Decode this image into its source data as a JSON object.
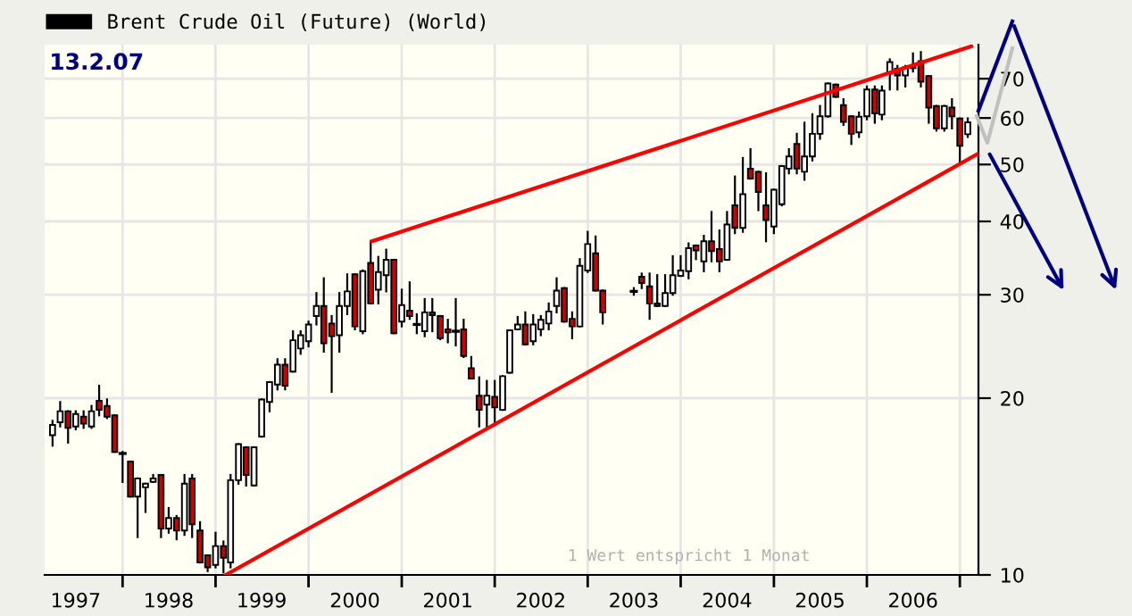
{
  "chart_data": {
    "type": "candlestick",
    "xlim": [
      "1997-03-01",
      "2007-03-15"
    ],
    "xticks": [
      {
        "value": "1997-07-01",
        "label": "1997"
      },
      {
        "value": "1998-01-01",
        "label": null
      },
      {
        "value": "1998-07-01",
        "label": "1998"
      },
      {
        "value": "1999-01-01",
        "label": null
      },
      {
        "value": "1999-07-01",
        "label": "1999"
      },
      {
        "value": "2000-01-01",
        "label": null
      },
      {
        "value": "2000-07-01",
        "label": "2000"
      },
      {
        "value": "2001-01-01",
        "label": null
      },
      {
        "value": "2001-07-01",
        "label": "2001"
      },
      {
        "value": "2002-01-01",
        "label": null
      },
      {
        "value": "2002-07-01",
        "label": "2002"
      },
      {
        "value": "2003-01-01",
        "label": null
      },
      {
        "value": "2003-07-01",
        "label": "2003"
      },
      {
        "value": "2004-01-01",
        "label": null
      },
      {
        "value": "2004-07-01",
        "label": "2004"
      },
      {
        "value": "2005-01-01",
        "label": null
      },
      {
        "value": "2005-07-01",
        "label": "2005"
      },
      {
        "value": "2006-01-01",
        "label": null
      },
      {
        "value": "2006-07-01",
        "label": "2006"
      },
      {
        "value": "2007-01-01",
        "label": null
      }
    ],
    "ylim": [
      10,
      80
    ],
    "yticks": [
      10,
      20,
      30,
      40,
      50,
      60,
      70
    ],
    "log": true,
    "grid": true,
    "legend": "top left",
    "annotations": [
      "13.2.07",
      "1 Wert entspricht 1 Monat"
    ],
    "series": [
      {
        "name": "Brent Crude Oil (Future) (World)",
        "color": "#000000",
        "x": [
          "1997-04",
          "1997-05",
          "1997-06",
          "1997-07",
          "1997-08",
          "1997-09",
          "1997-10",
          "1997-11",
          "1997-12",
          "1998-01",
          "1998-02",
          "1998-03",
          "1998-04",
          "1998-05",
          "1998-06",
          "1998-07",
          "1998-08",
          "1998-09",
          "1998-10",
          "1998-11",
          "1998-12",
          "1999-01",
          "1999-02",
          "1999-03",
          "1999-04",
          "1999-05",
          "1999-06",
          "1999-07",
          "1999-08",
          "1999-09",
          "1999-10",
          "1999-11",
          "1999-12",
          "2000-01",
          "2000-02",
          "2000-03",
          "2000-04",
          "2000-05",
          "2000-06",
          "2000-07",
          "2000-08",
          "2000-09",
          "2000-10",
          "2000-11",
          "2000-12",
          "2001-01",
          "2001-02",
          "2001-03",
          "2001-04",
          "2001-05",
          "2001-06",
          "2001-07",
          "2001-08",
          "2001-09",
          "2001-10",
          "2001-11",
          "2001-12",
          "2002-01",
          "2002-02",
          "2002-03",
          "2002-04",
          "2002-05",
          "2002-06",
          "2002-07",
          "2002-08",
          "2002-09",
          "2002-10",
          "2002-11",
          "2002-12",
          "2003-01",
          "2003-02",
          "2003-03",
          "2003-07",
          "2003-08",
          "2003-09",
          "2003-10",
          "2003-11",
          "2003-12",
          "2004-01",
          "2004-02",
          "2004-03",
          "2004-04",
          "2004-05",
          "2004-06",
          "2004-07",
          "2004-08",
          "2004-09",
          "2004-10",
          "2004-11",
          "2004-12",
          "2005-01",
          "2005-02",
          "2005-03",
          "2005-04",
          "2005-05",
          "2005-06",
          "2005-07",
          "2005-08",
          "2005-09",
          "2005-10",
          "2005-11",
          "2005-12",
          "2006-01",
          "2006-02",
          "2006-03",
          "2006-04",
          "2006-05",
          "2006-06",
          "2006-07",
          "2006-08",
          "2006-09",
          "2006-10",
          "2006-11",
          "2006-12",
          "2007-01",
          "2007-02"
        ],
        "ohlc": [
          [
            17.3,
            18.3,
            16.6,
            18.0
          ],
          [
            18.2,
            19.7,
            17.9,
            19.0
          ],
          [
            19.0,
            19.0,
            16.8,
            17.8
          ],
          [
            17.9,
            19.0,
            17.7,
            18.8
          ],
          [
            18.6,
            19.0,
            17.8,
            18.1
          ],
          [
            17.9,
            19.4,
            17.8,
            19.0
          ],
          [
            19.8,
            21.0,
            18.7,
            19.1
          ],
          [
            19.4,
            19.9,
            18.5,
            18.6
          ],
          [
            18.7,
            18.7,
            16.2,
            16.2
          ],
          [
            16.1,
            16.2,
            14.4,
            16.1
          ],
          [
            15.6,
            15.6,
            13.6,
            13.6
          ],
          [
            13.6,
            14.6,
            11.6,
            14.6
          ],
          [
            14.1,
            14.3,
            12.8,
            14.3
          ],
          [
            14.4,
            14.8,
            14.4,
            14.6
          ],
          [
            14.8,
            14.8,
            11.6,
            12.0
          ],
          [
            12.0,
            13.0,
            11.8,
            12.5
          ],
          [
            12.5,
            12.6,
            11.5,
            11.9
          ],
          [
            11.9,
            14.8,
            11.7,
            14.3
          ],
          [
            14.6,
            14.8,
            11.6,
            12.2
          ],
          [
            11.9,
            12.3,
            10.5,
            10.5
          ],
          [
            10.8,
            10.8,
            10.15,
            10.3
          ],
          [
            10.4,
            11.8,
            10.3,
            11.2
          ],
          [
            11.2,
            11.4,
            10.1,
            10.7
          ],
          [
            10.5,
            14.8,
            10.3,
            14.5
          ],
          [
            14.5,
            16.7,
            14.3,
            16.7
          ],
          [
            16.5,
            16.5,
            14.2,
            14.8
          ],
          [
            14.2,
            16.5,
            14.2,
            16.5
          ],
          [
            17.2,
            19.9,
            17.2,
            19.9
          ],
          [
            19.7,
            21.3,
            19.0,
            21.3
          ],
          [
            21.1,
            23.3,
            20.7,
            22.8
          ],
          [
            22.8,
            23.3,
            20.7,
            21.0
          ],
          [
            22.2,
            26.0,
            22.2,
            25.1
          ],
          [
            24.3,
            26.0,
            23.8,
            25.6
          ],
          [
            25.0,
            27.0,
            24.5,
            26.7
          ],
          [
            27.6,
            30.2,
            26.7,
            28.7
          ],
          [
            28.7,
            32.0,
            24.0,
            24.8
          ],
          [
            26.8,
            27.6,
            20.5,
            25.5
          ],
          [
            25.6,
            30.2,
            24.0,
            28.7
          ],
          [
            28.7,
            32.5,
            27.8,
            30.4
          ],
          [
            32.5,
            32.5,
            26.2,
            26.5
          ],
          [
            26.0,
            33.0,
            25.8,
            32.9
          ],
          [
            34.0,
            37.0,
            29.0,
            29.0
          ],
          [
            30.6,
            34.8,
            29.0,
            32.8
          ],
          [
            32.4,
            35.8,
            30.4,
            34.4
          ],
          [
            34.4,
            34.4,
            25.8,
            25.8
          ],
          [
            27.0,
            30.6,
            26.5,
            28.8
          ],
          [
            28.2,
            31.5,
            27.3,
            27.6
          ],
          [
            26.7,
            27.8,
            25.8,
            26.7
          ],
          [
            26.0,
            29.5,
            25.5,
            28.0
          ],
          [
            28.0,
            29.5,
            26.0,
            27.7
          ],
          [
            27.6,
            27.6,
            25.2,
            25.3
          ],
          [
            26.2,
            27.2,
            24.9,
            25.9
          ],
          [
            26.0,
            29.5,
            24.6,
            26.0
          ],
          [
            26.2,
            27.2,
            23.5,
            23.6
          ],
          [
            22.5,
            23.5,
            21.6,
            21.6
          ],
          [
            20.2,
            21.7,
            17.9,
            19.1
          ],
          [
            19.5,
            21.4,
            17.8,
            20.2
          ],
          [
            20.1,
            21.4,
            18.0,
            19.3
          ],
          [
            19.1,
            21.8,
            19.1,
            21.8
          ],
          [
            22.1,
            26.1,
            22.1,
            26.1
          ],
          [
            26.2,
            27.5,
            26.2,
            26.7
          ],
          [
            26.7,
            28.0,
            24.7,
            24.7
          ],
          [
            25.0,
            27.7,
            24.7,
            26.7
          ],
          [
            26.2,
            27.6,
            25.6,
            27.2
          ],
          [
            26.8,
            29.0,
            26.2,
            28.1
          ],
          [
            28.7,
            32.0,
            28.0,
            30.5
          ],
          [
            30.8,
            30.8,
            27.0,
            27.0
          ],
          [
            27.3,
            28.0,
            25.3,
            26.5
          ],
          [
            26.5,
            34.5,
            26.5,
            33.6
          ],
          [
            33.0,
            38.4,
            32.8,
            36.6
          ],
          [
            35.3,
            37.7,
            30.5,
            30.5
          ],
          [
            30.5,
            30.5,
            26.8,
            28.0
          ],
          [
            30.4,
            30.8,
            30.0,
            30.4
          ],
          [
            32.2,
            32.6,
            30.8,
            31.4
          ],
          [
            31.0,
            32.6,
            27.3,
            29.0
          ],
          [
            29.0,
            32.4,
            28.7,
            28.7
          ],
          [
            28.7,
            32.4,
            28.7,
            30.2
          ],
          [
            30.2,
            34.9,
            30.0,
            32.4
          ],
          [
            32.3,
            34.9,
            32.3,
            33.0
          ],
          [
            32.9,
            36.7,
            32.0,
            36.0
          ],
          [
            36.4,
            36.4,
            34.5,
            35.7
          ],
          [
            34.2,
            37.8,
            32.9,
            37.0
          ],
          [
            37.0,
            41.5,
            34.2,
            35.6
          ],
          [
            35.9,
            38.6,
            32.9,
            34.2
          ],
          [
            34.4,
            41.5,
            34.4,
            39.5
          ],
          [
            42.6,
            47.7,
            38.2,
            39.0
          ],
          [
            39.0,
            51.3,
            38.4,
            44.5
          ],
          [
            49.2,
            53.1,
            47.3,
            47.3
          ],
          [
            48.6,
            48.6,
            41.8,
            44.9
          ],
          [
            42.6,
            48.3,
            37.0,
            40.2
          ],
          [
            39.2,
            45.3,
            38.2,
            45.3
          ],
          [
            42.8,
            49.7,
            42.6,
            49.7
          ],
          [
            49.2,
            53.1,
            48.3,
            51.6
          ],
          [
            54.2,
            56.4,
            48.3,
            49.2
          ],
          [
            48.6,
            58.9,
            47.1,
            51.6
          ],
          [
            51.6,
            60.9,
            50.8,
            56.4
          ],
          [
            56.4,
            62.9,
            55.3,
            60.4
          ],
          [
            60.4,
            68.7,
            60.3,
            68.7
          ],
          [
            68.4,
            68.4,
            65.2,
            65.2
          ],
          [
            63.1,
            64.6,
            58.4,
            59.1
          ],
          [
            60.4,
            60.4,
            54.2,
            56.4
          ],
          [
            56.7,
            61.3,
            55.7,
            60.3
          ],
          [
            60.4,
            67.9,
            59.7,
            67.1
          ],
          [
            67.1,
            67.9,
            58.9,
            61.1
          ],
          [
            60.8,
            67.9,
            59.7,
            66.8
          ],
          [
            71.4,
            75.5,
            67.1,
            74.7
          ],
          [
            72.8,
            73.6,
            67.1,
            70.9
          ],
          [
            70.9,
            73.6,
            67.9,
            73.2
          ],
          [
            73.6,
            77.3,
            72.0,
            73.0
          ],
          [
            75.0,
            77.7,
            67.9,
            69.2
          ],
          [
            70.7,
            70.7,
            58.9,
            62.5
          ],
          [
            62.9,
            62.9,
            57.1,
            57.6
          ],
          [
            57.6,
            62.9,
            57.1,
            62.9
          ],
          [
            62.5,
            64.6,
            57.6,
            60.4
          ],
          [
            59.9,
            59.9,
            50.5,
            53.8
          ],
          [
            56.3,
            59.9,
            55.7,
            59.0
          ]
        ]
      },
      {
        "type": "line",
        "color": "#ff0000",
        "x": [
          "2000-09-05",
          "2007-02-15"
        ],
        "values": [
          37.0,
          79.5
        ]
      },
      {
        "type": "line",
        "color": "#ff0000",
        "x": [
          "1999-02-10",
          "2007-03-15"
        ],
        "values": [
          10.0,
          52.2
        ]
      }
    ]
  }
}
